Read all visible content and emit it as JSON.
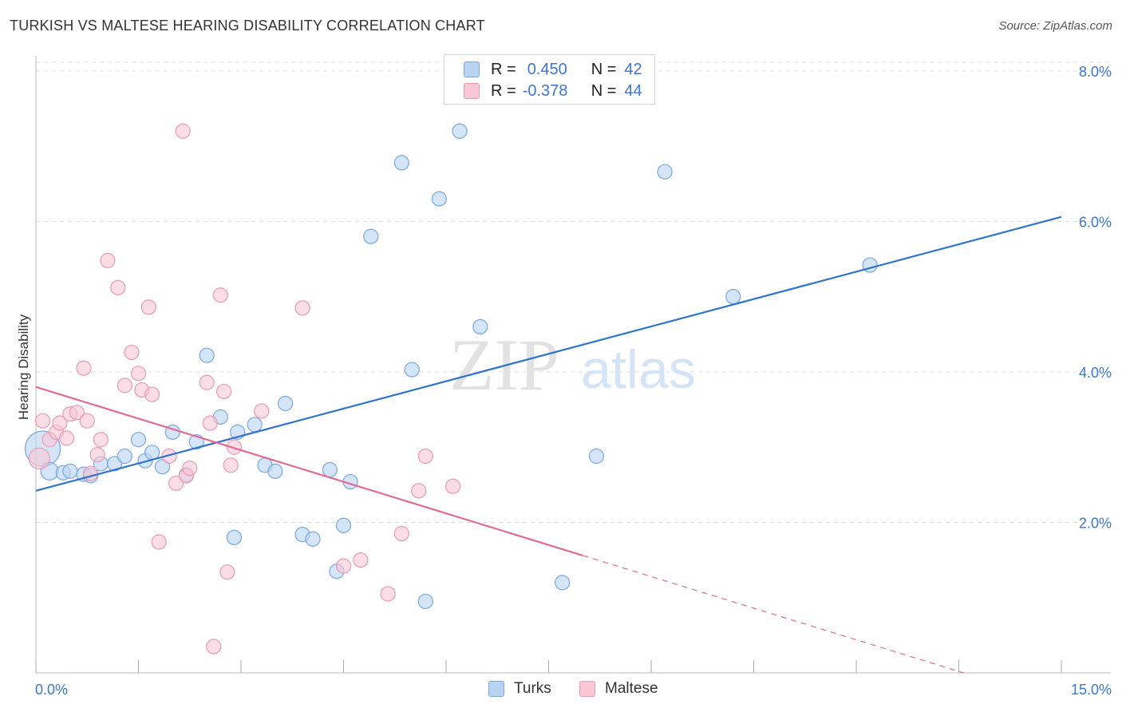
{
  "header": {
    "title": "TURKISH VS MALTESE HEARING DISABILITY CORRELATION CHART",
    "source": "Source: ZipAtlas.com"
  },
  "legend_top": {
    "rows": [
      {
        "r_label": "R =",
        "r_value": "0.450",
        "n_label": "N =",
        "n_value": "42"
      },
      {
        "r_label": "R =",
        "r_value": "-0.378",
        "n_label": "N =",
        "n_value": "44"
      }
    ]
  },
  "legend_bottom": {
    "items": [
      {
        "label": "Turks"
      },
      {
        "label": "Maltese"
      }
    ]
  },
  "watermark": {
    "part1": "ZIP",
    "part2": "atlas"
  },
  "colors": {
    "turks_fill": "#b9d3f3",
    "turks_stroke": "#7aa6e0",
    "turks_line": "#2f74cc",
    "maltese_fill": "#f8c6d5",
    "maltese_stroke": "#e89ab3",
    "maltese_line": "#e06c95",
    "tick_label": "#3a77d0",
    "grid": "#dddddd"
  },
  "chart_data": {
    "type": "scatter",
    "title": "TURKISH VS MALTESE HEARING DISABILITY CORRELATION CHART",
    "xlabel": "",
    "ylabel": "Hearing Disability",
    "xlim": [
      0,
      15
    ],
    "ylim": [
      0,
      8.2
    ],
    "x_tick_labels": [
      {
        "value": 0,
        "label": "0.0%"
      },
      {
        "value": 15,
        "label": "15.0%"
      }
    ],
    "y_tick_labels": [
      {
        "value": 2,
        "label": "2.0%"
      },
      {
        "value": 4,
        "label": "4.0%"
      },
      {
        "value": 6,
        "label": "6.0%"
      },
      {
        "value": 8,
        "label": "8.0%"
      }
    ],
    "grid": true,
    "legend_position": "top-center",
    "series": [
      {
        "name": "Turks",
        "r": 0.45,
        "n": 42,
        "trend": {
          "x": [
            0,
            15
          ],
          "y": [
            2.42,
            6.06
          ],
          "solid_until": 15
        },
        "points": [
          [
            0.1,
            2.98,
            22
          ],
          [
            0.2,
            2.68,
            11
          ],
          [
            0.4,
            2.66,
            9
          ],
          [
            0.5,
            2.68,
            9
          ],
          [
            0.7,
            2.64,
            9
          ],
          [
            0.8,
            2.62,
            9
          ],
          [
            0.95,
            2.78,
            9
          ],
          [
            1.15,
            2.78,
            9
          ],
          [
            1.3,
            2.88,
            9
          ],
          [
            1.5,
            3.1,
            9
          ],
          [
            1.6,
            2.82,
            9
          ],
          [
            1.7,
            2.93,
            9
          ],
          [
            1.85,
            2.74,
            9
          ],
          [
            2.0,
            3.2,
            9
          ],
          [
            2.2,
            2.63,
            9
          ],
          [
            2.35,
            3.07,
            9
          ],
          [
            2.5,
            4.22,
            9
          ],
          [
            2.7,
            3.4,
            9
          ],
          [
            2.9,
            1.8,
            9
          ],
          [
            2.95,
            3.2,
            9
          ],
          [
            3.2,
            3.3,
            9
          ],
          [
            3.35,
            2.76,
            9
          ],
          [
            3.5,
            2.68,
            9
          ],
          [
            3.65,
            3.58,
            9
          ],
          [
            3.9,
            1.84,
            9
          ],
          [
            4.05,
            1.78,
            9
          ],
          [
            4.3,
            2.7,
            9
          ],
          [
            4.4,
            1.35,
            9
          ],
          [
            4.5,
            1.96,
            9
          ],
          [
            4.6,
            2.54,
            9
          ],
          [
            4.9,
            5.8,
            9
          ],
          [
            5.35,
            6.78,
            9
          ],
          [
            5.5,
            4.03,
            9
          ],
          [
            5.7,
            0.95,
            9
          ],
          [
            5.9,
            6.3,
            9
          ],
          [
            6.2,
            7.2,
            9
          ],
          [
            6.5,
            4.6,
            9
          ],
          [
            7.7,
            1.2,
            9
          ],
          [
            8.2,
            2.88,
            9
          ],
          [
            9.2,
            6.66,
            9
          ],
          [
            10.2,
            5.0,
            9
          ],
          [
            12.2,
            5.42,
            9
          ]
        ]
      },
      {
        "name": "Maltese",
        "r": -0.378,
        "n": 44,
        "trend": {
          "x": [
            0,
            15
          ],
          "y": [
            3.8,
            -0.4
          ],
          "solid_until": 8.0
        },
        "points": [
          [
            0.05,
            2.85,
            13
          ],
          [
            0.1,
            3.35,
            9
          ],
          [
            0.2,
            3.1,
            9
          ],
          [
            0.3,
            3.2,
            9
          ],
          [
            0.35,
            3.32,
            9
          ],
          [
            0.45,
            3.12,
            9
          ],
          [
            0.5,
            3.44,
            9
          ],
          [
            0.6,
            3.46,
            9
          ],
          [
            0.7,
            4.05,
            9
          ],
          [
            0.75,
            3.35,
            9
          ],
          [
            0.8,
            2.65,
            9
          ],
          [
            0.9,
            2.9,
            9
          ],
          [
            0.95,
            3.1,
            9
          ],
          [
            1.05,
            5.48,
            9
          ],
          [
            1.2,
            5.12,
            9
          ],
          [
            1.3,
            3.82,
            9
          ],
          [
            1.4,
            4.26,
            9
          ],
          [
            1.5,
            3.98,
            9
          ],
          [
            1.55,
            3.76,
            9
          ],
          [
            1.65,
            4.86,
            9
          ],
          [
            1.7,
            3.7,
            9
          ],
          [
            1.8,
            1.74,
            9
          ],
          [
            1.95,
            2.88,
            9
          ],
          [
            2.05,
            2.52,
            9
          ],
          [
            2.15,
            7.2,
            9
          ],
          [
            2.2,
            2.62,
            9
          ],
          [
            2.25,
            2.72,
            9
          ],
          [
            2.5,
            3.86,
            9
          ],
          [
            2.55,
            3.32,
            9
          ],
          [
            2.6,
            0.35,
            9
          ],
          [
            2.7,
            5.02,
            9
          ],
          [
            2.75,
            3.74,
            9
          ],
          [
            2.8,
            1.34,
            9
          ],
          [
            2.85,
            2.76,
            9
          ],
          [
            2.9,
            3.0,
            9
          ],
          [
            3.3,
            3.48,
            9
          ],
          [
            3.9,
            4.85,
            9
          ],
          [
            4.5,
            1.42,
            9
          ],
          [
            4.75,
            1.5,
            9
          ],
          [
            5.15,
            1.05,
            9
          ],
          [
            5.35,
            1.85,
            9
          ],
          [
            5.6,
            2.42,
            9
          ],
          [
            5.7,
            2.88,
            9
          ],
          [
            6.1,
            2.48,
            9
          ]
        ]
      }
    ]
  }
}
